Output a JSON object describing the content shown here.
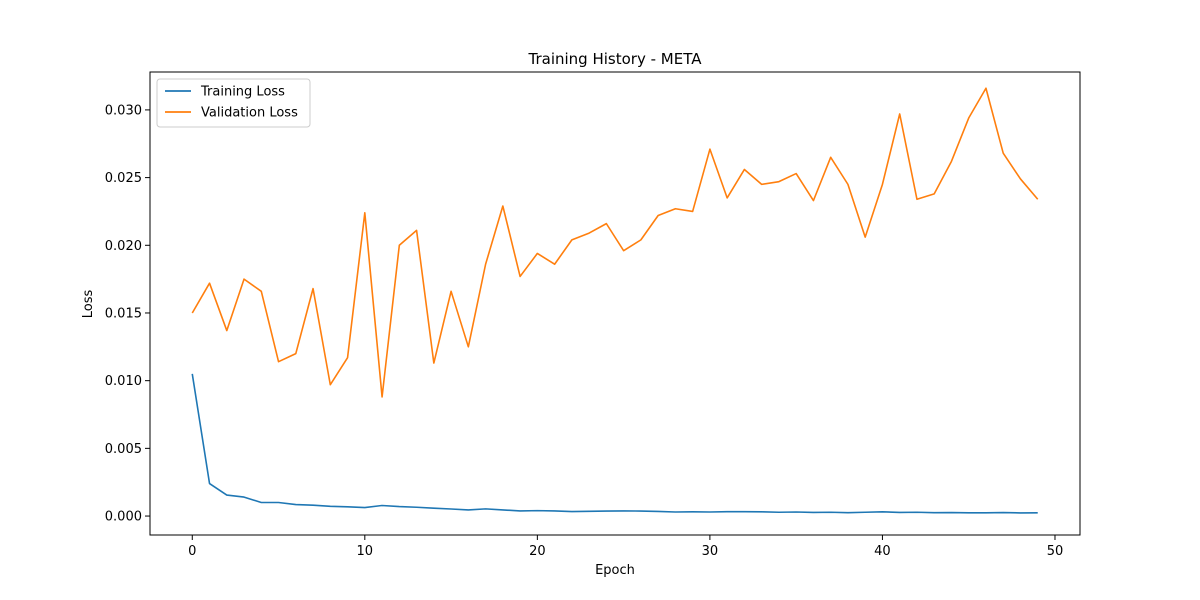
{
  "chart_data": {
    "type": "line",
    "title": "Training History - META",
    "xlabel": "Epoch",
    "ylabel": "Loss",
    "xlim": [
      -2.45,
      51.45
    ],
    "ylim": [
      -0.0014,
      0.0328
    ],
    "xticks": [
      0,
      10,
      20,
      30,
      40,
      50
    ],
    "yticks": [
      0.0,
      0.005,
      0.01,
      0.015,
      0.02,
      0.025,
      0.03
    ],
    "ytick_labels": [
      "0.000",
      "0.005",
      "0.010",
      "0.015",
      "0.020",
      "0.025",
      "0.030"
    ],
    "legend_position": "top-left",
    "grid": false,
    "x": [
      0,
      1,
      2,
      3,
      4,
      5,
      6,
      7,
      8,
      9,
      10,
      11,
      12,
      13,
      14,
      15,
      16,
      17,
      18,
      19,
      20,
      21,
      22,
      23,
      24,
      25,
      26,
      27,
      28,
      29,
      30,
      31,
      32,
      33,
      34,
      35,
      36,
      37,
      38,
      39,
      40,
      41,
      42,
      43,
      44,
      45,
      46,
      47,
      48,
      49
    ],
    "series": [
      {
        "name": "Training Loss",
        "color": "#1f77b4",
        "values": [
          0.0105,
          0.0024,
          0.00155,
          0.0014,
          0.001,
          0.001,
          0.00085,
          0.0008,
          0.00072,
          0.00068,
          0.00063,
          0.00078,
          0.0007,
          0.00065,
          0.00058,
          0.00052,
          0.00045,
          0.00053,
          0.00045,
          0.00038,
          0.0004,
          0.00038,
          0.00033,
          0.00035,
          0.00037,
          0.00038,
          0.00037,
          0.00034,
          0.0003,
          0.00031,
          0.0003,
          0.00032,
          0.00032,
          0.00031,
          0.00028,
          0.0003,
          0.00027,
          0.00028,
          0.00025,
          0.00028,
          0.00031,
          0.00027,
          0.00028,
          0.00025,
          0.00026,
          0.00024,
          0.00024,
          0.00026,
          0.00023,
          0.00024
        ]
      },
      {
        "name": "Validation Loss",
        "color": "#ff7f0e",
        "values": [
          0.015,
          0.0172,
          0.0137,
          0.0175,
          0.0166,
          0.0114,
          0.012,
          0.0168,
          0.0097,
          0.0117,
          0.0224,
          0.0088,
          0.02,
          0.0211,
          0.0113,
          0.0166,
          0.0125,
          0.0186,
          0.0229,
          0.0177,
          0.0194,
          0.0186,
          0.0204,
          0.0209,
          0.0216,
          0.0196,
          0.0204,
          0.0222,
          0.0227,
          0.0225,
          0.0271,
          0.0235,
          0.0256,
          0.0245,
          0.0247,
          0.0253,
          0.0233,
          0.0265,
          0.0245,
          0.0206,
          0.0245,
          0.0297,
          0.0234,
          0.0238,
          0.0262,
          0.0294,
          0.0316,
          0.0268,
          0.0249,
          0.0234
        ]
      }
    ]
  }
}
